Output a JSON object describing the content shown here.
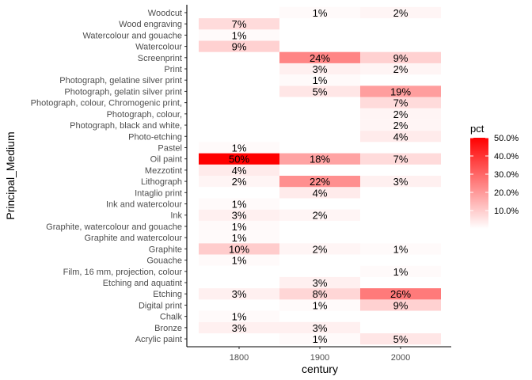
{
  "chart_data": {
    "type": "heatmap",
    "xlabel": "century",
    "ylabel": "Principal_Medium",
    "x_categories": [
      "1800",
      "1900",
      "2000"
    ],
    "y_categories": [
      "Acrylic paint",
      "Bronze",
      "Chalk",
      "Digital print",
      "Etching",
      "Etching and aquatint",
      "Film, 16 mm, projection, colour",
      "Gouache",
      "Graphite",
      "Graphite and watercolour",
      "Graphite, watercolour and gouache",
      "Ink",
      "Ink and watercolour",
      "Intaglio print",
      "Lithograph",
      "Mezzotint",
      "Oil paint",
      "Pastel",
      "Photo-etching",
      "Photograph, black and white,",
      "Photograph, colour,",
      "Photograph, colour, Chromogenic print,",
      "Photograph, gelatin silver print",
      "Photograph, gelatine silver print",
      "Print",
      "Screenprint",
      "Watercolour",
      "Watercolour and gouache",
      "Wood engraving",
      "Woodcut"
    ],
    "cells": [
      {
        "medium": "Acrylic paint",
        "century": "1900",
        "value": 1,
        "label": "1%"
      },
      {
        "medium": "Acrylic paint",
        "century": "2000",
        "value": 5,
        "label": "5%"
      },
      {
        "medium": "Bronze",
        "century": "1800",
        "value": 3,
        "label": "3%"
      },
      {
        "medium": "Bronze",
        "century": "1900",
        "value": 3,
        "label": "3%"
      },
      {
        "medium": "Chalk",
        "century": "1800",
        "value": 1,
        "label": "1%"
      },
      {
        "medium": "Digital print",
        "century": "1900",
        "value": 1,
        "label": "1%"
      },
      {
        "medium": "Digital print",
        "century": "2000",
        "value": 9,
        "label": "9%"
      },
      {
        "medium": "Etching",
        "century": "1800",
        "value": 3,
        "label": "3%"
      },
      {
        "medium": "Etching",
        "century": "1900",
        "value": 8,
        "label": "8%"
      },
      {
        "medium": "Etching",
        "century": "2000",
        "value": 26,
        "label": "26%"
      },
      {
        "medium": "Etching and aquatint",
        "century": "1900",
        "value": 3,
        "label": "3%"
      },
      {
        "medium": "Film, 16 mm, projection, colour",
        "century": "2000",
        "value": 1,
        "label": "1%"
      },
      {
        "medium": "Gouache",
        "century": "1800",
        "value": 1,
        "label": "1%"
      },
      {
        "medium": "Graphite",
        "century": "1800",
        "value": 10,
        "label": "10%"
      },
      {
        "medium": "Graphite",
        "century": "1900",
        "value": 2,
        "label": "2%"
      },
      {
        "medium": "Graphite",
        "century": "2000",
        "value": 1,
        "label": "1%"
      },
      {
        "medium": "Graphite and watercolour",
        "century": "1800",
        "value": 1,
        "label": "1%"
      },
      {
        "medium": "Graphite, watercolour and gouache",
        "century": "1800",
        "value": 1,
        "label": "1%"
      },
      {
        "medium": "Ink",
        "century": "1800",
        "value": 3,
        "label": "3%"
      },
      {
        "medium": "Ink",
        "century": "1900",
        "value": 2,
        "label": "2%"
      },
      {
        "medium": "Ink and watercolour",
        "century": "1800",
        "value": 1,
        "label": "1%"
      },
      {
        "medium": "Intaglio print",
        "century": "1900",
        "value": 4,
        "label": "4%"
      },
      {
        "medium": "Lithograph",
        "century": "1800",
        "value": 2,
        "label": "2%"
      },
      {
        "medium": "Lithograph",
        "century": "1900",
        "value": 22,
        "label": "22%"
      },
      {
        "medium": "Lithograph",
        "century": "2000",
        "value": 3,
        "label": "3%"
      },
      {
        "medium": "Mezzotint",
        "century": "1800",
        "value": 4,
        "label": "4%"
      },
      {
        "medium": "Oil paint",
        "century": "1800",
        "value": 50,
        "label": "50%"
      },
      {
        "medium": "Oil paint",
        "century": "1900",
        "value": 18,
        "label": "18%"
      },
      {
        "medium": "Oil paint",
        "century": "2000",
        "value": 7,
        "label": "7%"
      },
      {
        "medium": "Pastel",
        "century": "1800",
        "value": 1,
        "label": "1%"
      },
      {
        "medium": "Photo-etching",
        "century": "2000",
        "value": 4,
        "label": "4%"
      },
      {
        "medium": "Photograph, black and white,",
        "century": "2000",
        "value": 2,
        "label": "2%"
      },
      {
        "medium": "Photograph, colour,",
        "century": "2000",
        "value": 2,
        "label": "2%"
      },
      {
        "medium": "Photograph, colour, Chromogenic print,",
        "century": "2000",
        "value": 7,
        "label": "7%"
      },
      {
        "medium": "Photograph, gelatin silver print",
        "century": "1900",
        "value": 5,
        "label": "5%"
      },
      {
        "medium": "Photograph, gelatin silver print",
        "century": "2000",
        "value": 19,
        "label": "19%"
      },
      {
        "medium": "Photograph, gelatine silver print",
        "century": "1900",
        "value": 1,
        "label": "1%"
      },
      {
        "medium": "Print",
        "century": "1900",
        "value": 3,
        "label": "3%"
      },
      {
        "medium": "Print",
        "century": "2000",
        "value": 2,
        "label": "2%"
      },
      {
        "medium": "Screenprint",
        "century": "1900",
        "value": 24,
        "label": "24%"
      },
      {
        "medium": "Screenprint",
        "century": "2000",
        "value": 9,
        "label": "9%"
      },
      {
        "medium": "Watercolour",
        "century": "1800",
        "value": 9,
        "label": "9%"
      },
      {
        "medium": "Watercolour and gouache",
        "century": "1800",
        "value": 1,
        "label": "1%"
      },
      {
        "medium": "Wood engraving",
        "century": "1800",
        "value": 7,
        "label": "7%"
      },
      {
        "medium": "Woodcut",
        "century": "1900",
        "value": 1,
        "label": "1%"
      },
      {
        "medium": "Woodcut",
        "century": "2000",
        "value": 2,
        "label": "2%"
      }
    ],
    "legend": {
      "title": "pct",
      "placement": "right",
      "range": [
        0,
        50
      ],
      "breaks": [
        10,
        20,
        30,
        40,
        50
      ],
      "break_labels": [
        "10.0%",
        "20.0%",
        "30.0%",
        "40.0%",
        "50.0%"
      ],
      "low_color": "#ffffff",
      "high_color": "#ff0000"
    }
  }
}
